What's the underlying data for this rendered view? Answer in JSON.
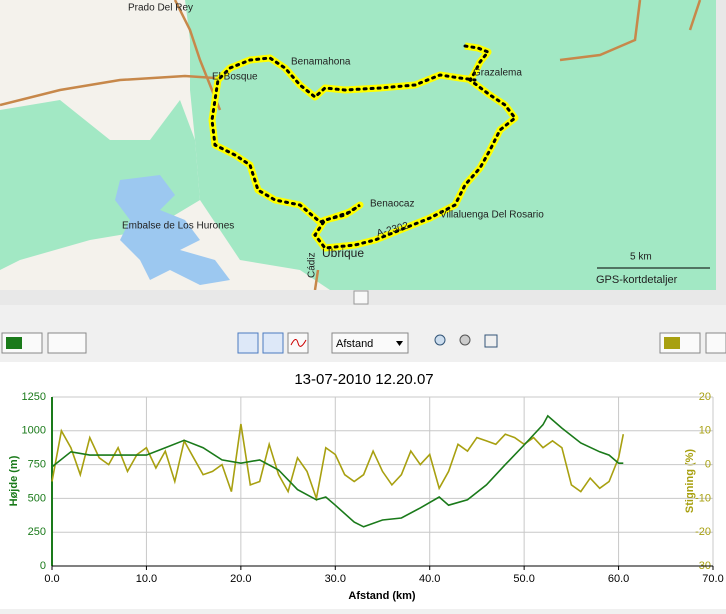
{
  "map": {
    "places": [
      "Prado Del Rey",
      "El Bosque",
      "Benamahona",
      "Grazalema",
      "Benaocaz",
      "Villaluenga Del Rosario",
      "A-2302",
      "Embalse de Los Hurones",
      "Cádiz",
      "Ubrique"
    ],
    "scale": "5 km",
    "details": "GPS-kortdetaljer"
  },
  "toolbar": {
    "x_axis_select": "Afstand"
  },
  "chart_data": {
    "type": "line",
    "title": "13-07-2010 12.20.07",
    "x_label": "Afstand (km)",
    "y_label": "Højde (m)",
    "y2_label": "Stigning (%)",
    "xlim": [
      0,
      70
    ],
    "xticks": [
      {
        "value": 0,
        "label": "0.0"
      },
      {
        "value": 10,
        "label": "10.0"
      },
      {
        "value": 20,
        "label": "20.0"
      },
      {
        "value": 30,
        "label": "30.0"
      },
      {
        "value": 40,
        "label": "40.0"
      },
      {
        "value": 50,
        "label": "50.0"
      },
      {
        "value": 60,
        "label": "60.0"
      },
      {
        "value": 70,
        "label": "70.0"
      }
    ],
    "ylim": [
      0,
      1250
    ],
    "yticks": [
      0,
      250,
      500,
      750,
      1000,
      1250
    ],
    "y2lim": [
      -30,
      20
    ],
    "y2ticks": [
      -30,
      -20,
      -10,
      0,
      10,
      20
    ],
    "grid": true,
    "y_color": "#1a7a1a",
    "y2_color": "#a8a010",
    "series": [
      {
        "color": "#1a7a1a",
        "axis": "y",
        "x": [
          0,
          2,
          4,
          6,
          8,
          10,
          12,
          14,
          16,
          18,
          20,
          22,
          24,
          26,
          28,
          29,
          30,
          32,
          33,
          35,
          37,
          39,
          41,
          42,
          44,
          46,
          48,
          50,
          52,
          52.5,
          54,
          56,
          58,
          59,
          60,
          60.5
        ],
        "values": [
          733,
          845,
          820,
          820,
          820,
          820,
          875,
          930,
          875,
          785,
          760,
          785,
          710,
          565,
          490,
          510,
          450,
          325,
          290,
          340,
          355,
          430,
          510,
          450,
          490,
          600,
          750,
          895,
          1045,
          1110,
          1020,
          910,
          845,
          820,
          760,
          760
        ]
      },
      {
        "color": "#a8a010",
        "axis": "y2",
        "x": [
          0,
          1,
          2,
          3,
          4,
          5,
          6,
          7,
          8,
          9,
          10,
          11,
          12,
          13,
          14,
          15,
          16,
          17,
          18,
          19,
          20,
          21,
          22,
          23,
          24,
          25,
          26,
          27,
          28,
          29,
          30,
          31,
          32,
          33,
          34,
          35,
          36,
          37,
          38,
          39,
          40,
          41,
          42,
          43,
          44,
          45,
          46,
          47,
          48,
          49,
          50,
          51,
          52,
          53,
          54,
          55,
          56,
          57,
          58,
          59,
          60,
          60.5
        ],
        "values": [
          -5,
          10,
          5,
          -3,
          8,
          2,
          0,
          5,
          -2,
          3,
          5,
          -1,
          4,
          -5,
          7,
          2,
          -3,
          -2,
          0,
          -8,
          12,
          -6,
          -5,
          6,
          -3,
          -8,
          2,
          -2,
          -10,
          5,
          3,
          -3,
          -5,
          -3,
          4,
          -2,
          -6,
          -3,
          4,
          0,
          3,
          -7,
          -2,
          6,
          4,
          8,
          7,
          6,
          9,
          8,
          6,
          8,
          5,
          7,
          5,
          -6,
          -8,
          -4,
          -7,
          -5,
          2,
          9
        ]
      }
    ]
  }
}
